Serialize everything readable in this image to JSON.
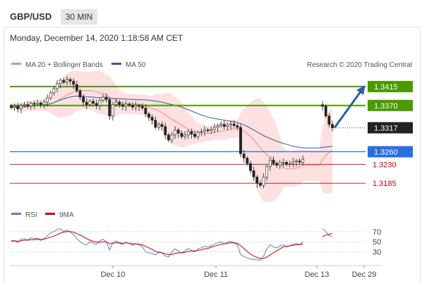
{
  "header": {
    "pair": "GBP/USD",
    "timeframe": "30 MIN",
    "datetime": "Monday, December 14, 2020 1:18:58 AM CET"
  },
  "legend": {
    "ma20_bollinger": "MA 20 + Bollinger Bands",
    "ma50": "MA 50",
    "credit": "Research © 2020 Trading Central",
    "rsi": "RSI",
    "rsi_ma": "9MA"
  },
  "colors": {
    "up_candle": "#ffffff",
    "down_candle": "#222222",
    "resistance": "#4a9a00",
    "pivot": "#2a6ee0",
    "support": "#cc0000",
    "bollinger_fill": "#fcd5d5",
    "ma20": "#f08a8a",
    "ma50": "#345a9a",
    "rsi": "#5a7fd6",
    "rsi_ma": "#cc0000",
    "arrow": "#2a5fa8"
  },
  "chart_data": [
    {
      "type": "candlestick",
      "ylim": [
        1.313,
        1.345
      ],
      "levels": [
        {
          "label": "1.3415",
          "value": 1.3415,
          "kind": "resistance"
        },
        {
          "label": "1.3370",
          "value": 1.337,
          "kind": "resistance"
        },
        {
          "label": "1.3317",
          "value": 1.3317,
          "kind": "last"
        },
        {
          "label": "1.3260",
          "value": 1.326,
          "kind": "pivot"
        },
        {
          "label": "1.3230",
          "value": 1.323,
          "kind": "support"
        },
        {
          "label": "1.3185",
          "value": 1.3185,
          "kind": "support"
        }
      ],
      "xticks": [
        "Dec 10",
        "Dec 11",
        "Dec 13",
        "Dec 29"
      ],
      "close": [
        1.3365,
        1.3368,
        1.3362,
        1.337,
        1.3372,
        1.3369,
        1.3375,
        1.3373,
        1.3376,
        1.3372,
        1.3378,
        1.3388,
        1.34,
        1.341,
        1.3422,
        1.343,
        1.3425,
        1.3432,
        1.3428,
        1.342,
        1.3405,
        1.339,
        1.3378,
        1.3372,
        1.338,
        1.3375,
        1.337,
        1.3382,
        1.339,
        1.3384,
        1.3345,
        1.3372,
        1.3378,
        1.3372,
        1.3368,
        1.3373,
        1.3371,
        1.3366,
        1.337,
        1.3368,
        1.3364,
        1.335,
        1.3342,
        1.3335,
        1.3318,
        1.3325,
        1.332,
        1.33,
        1.3288,
        1.33,
        1.3312,
        1.3304,
        1.3296,
        1.33,
        1.3308,
        1.3302,
        1.3296,
        1.3306,
        1.3308,
        1.3312,
        1.331,
        1.3313,
        1.3318,
        1.3322,
        1.3325,
        1.332,
        1.3324,
        1.3326,
        1.3322,
        1.3318,
        1.3255,
        1.3245,
        1.3232,
        1.3215,
        1.32,
        1.3185,
        1.318,
        1.32,
        1.3225,
        1.324,
        1.3232,
        1.3228,
        1.3234,
        1.3235,
        1.323,
        1.3232,
        1.3236,
        1.3238,
        1.3235,
        1.3242,
        null,
        null,
        null,
        null,
        null,
        1.3368,
        1.3345,
        1.3325,
        1.3317
      ]
    },
    {
      "type": "line",
      "series": [
        {
          "name": "RSI"
        },
        {
          "name": "9MA"
        }
      ],
      "yticks": [
        70,
        50,
        30
      ],
      "ylim": [
        10,
        85
      ],
      "rsi": [
        50,
        52,
        48,
        55,
        56,
        53,
        58,
        56,
        57,
        52,
        56,
        62,
        68,
        70,
        74,
        76,
        70,
        73,
        69,
        64,
        56,
        50,
        46,
        44,
        50,
        47,
        45,
        52,
        55,
        50,
        34,
        48,
        52,
        47,
        45,
        49,
        47,
        43,
        46,
        44,
        40,
        30,
        28,
        27,
        24,
        30,
        28,
        22,
        20,
        30,
        36,
        32,
        28,
        32,
        37,
        33,
        30,
        36,
        38,
        41,
        40,
        42,
        45,
        48,
        50,
        46,
        49,
        51,
        47,
        44,
        24,
        21,
        18,
        16,
        15,
        14,
        14,
        22,
        36,
        44,
        40,
        38,
        42,
        44,
        40,
        42,
        45,
        47,
        44,
        50,
        null,
        null,
        null,
        null,
        null,
        76,
        70,
        62,
        60
      ],
      "rsi_ma": [
        52,
        52,
        51,
        52,
        53,
        53,
        54,
        54,
        55,
        55,
        55,
        57,
        59,
        61,
        64,
        67,
        69,
        70,
        70,
        69,
        66,
        63,
        60,
        56,
        53,
        51,
        49,
        49,
        50,
        50,
        46,
        47,
        48,
        48,
        47,
        48,
        47,
        46,
        46,
        45,
        44,
        41,
        38,
        35,
        31,
        29,
        28,
        26,
        25,
        25,
        27,
        28,
        28,
        29,
        31,
        32,
        32,
        33,
        34,
        36,
        37,
        39,
        41,
        43,
        45,
        46,
        47,
        48,
        48,
        47,
        42,
        37,
        31,
        26,
        22,
        19,
        17,
        17,
        20,
        24,
        28,
        32,
        36,
        40,
        41,
        42,
        43,
        44,
        44,
        46,
        null,
        null,
        null,
        null,
        null,
        60,
        63,
        65,
        66
      ]
    }
  ]
}
